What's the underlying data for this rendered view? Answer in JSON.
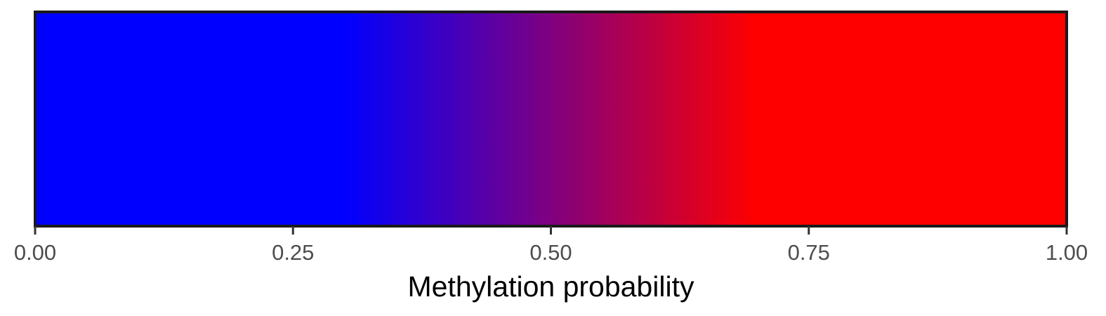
{
  "chart_data": {
    "type": "heatmap",
    "title": "",
    "xlabel": "Methylation probability",
    "ylabel": "",
    "xlim": [
      0,
      1
    ],
    "x_ticks": [
      0,
      0.25,
      0.5,
      0.75,
      1
    ],
    "tick_labels": [
      "0.00",
      "0.25",
      "0.50",
      "0.75",
      "1.00"
    ],
    "grid": false,
    "legend": "none",
    "color_scale": {
      "low_color": "#0000ff",
      "high_color": "#ff0000",
      "stops": [
        {
          "x": 0.0,
          "color": "#0000ff"
        },
        {
          "x": 0.3,
          "color": "#0000ff"
        },
        {
          "x": 0.7,
          "color": "#ff0000"
        },
        {
          "x": 1.0,
          "color": "#ff0000"
        }
      ]
    }
  }
}
